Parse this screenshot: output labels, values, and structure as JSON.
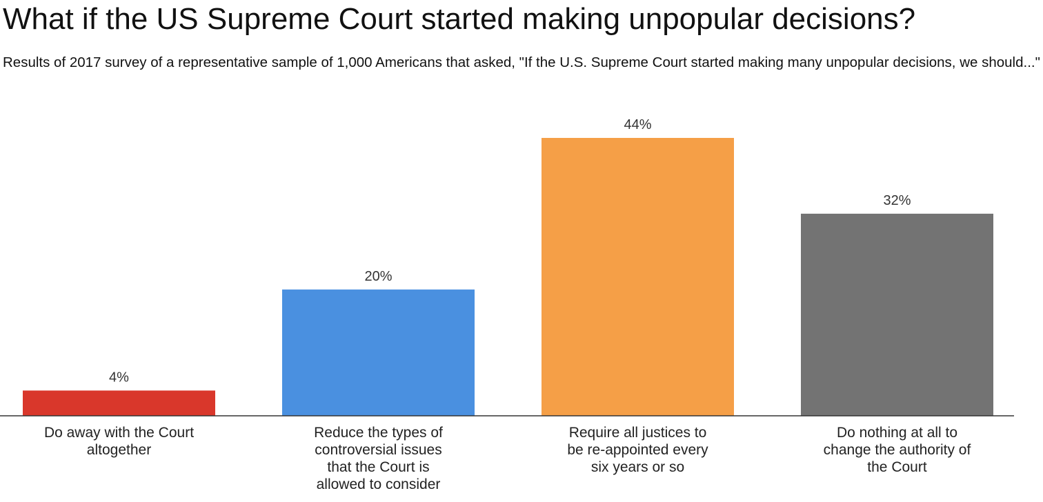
{
  "chart_data": {
    "type": "bar",
    "title": "What if the US Supreme Court started making unpopular decisions?",
    "subtitle": "Results of 2017 survey of a representative sample of 1,000 Americans that asked, \"If the U.S. Supreme Court started making many unpopular decisions, we should...\"",
    "categories": [
      [
        "Do away with the Court",
        "altogether"
      ],
      [
        "Reduce the types of",
        "controversial issues",
        "that the Court is",
        "allowed to consider"
      ],
      [
        "Require all justices to",
        "be re-appointed every",
        "six years or so"
      ],
      [
        "Do nothing at all to",
        "change the authority of",
        "the Court"
      ]
    ],
    "values": [
      4,
      20,
      44,
      32
    ],
    "value_labels": [
      "4%",
      "20%",
      "44%",
      "32%"
    ],
    "colors": [
      "#d9372b",
      "#4a90e0",
      "#f59f47",
      "#737373"
    ],
    "xlabel": "",
    "ylabel": "",
    "ylim": [
      0,
      44
    ],
    "grid": false,
    "legend": "none"
  }
}
